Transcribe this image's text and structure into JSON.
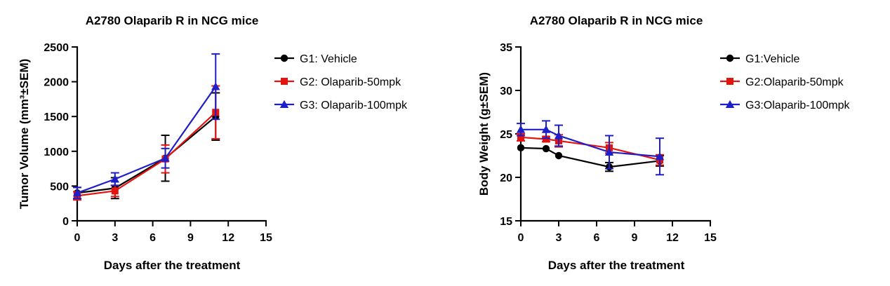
{
  "chart_data": [
    {
      "type": "line",
      "title": "A2780 Olaparib R  in NCG mice",
      "xlabel": "Days after the treatment",
      "ylabel": "Tumor Volume (mm³±SEM)",
      "xlim": [
        0,
        15
      ],
      "ylim": [
        0,
        2500
      ],
      "x_ticks": [
        "0",
        "3",
        "6",
        "9",
        "12",
        "15"
      ],
      "y_ticks": [
        "0",
        "500",
        "1000",
        "1500",
        "2000",
        "2500"
      ],
      "grid": false,
      "legend_position": "right",
      "series": [
        {
          "name": "G1: Vehicle",
          "color": "#000000",
          "marker": "circle",
          "x": [
            0,
            3,
            7,
            11
          ],
          "y": [
            400,
            470,
            900,
            1500
          ],
          "err": [
            80,
            150,
            330,
            340
          ]
        },
        {
          "name": "G2: Olaparib-50mpk",
          "color": "#e3130f",
          "marker": "square",
          "x": [
            0,
            3,
            7,
            11
          ],
          "y": [
            360,
            430,
            890,
            1560
          ],
          "err": [
            60,
            80,
            200,
            380
          ]
        },
        {
          "name": "G3: Olaparib-100mpk",
          "color": "#1f1fc8",
          "marker": "triangle",
          "x": [
            0,
            3,
            7,
            11
          ],
          "y": [
            400,
            600,
            900,
            1930
          ],
          "err": [
            80,
            90,
            140,
            470
          ]
        }
      ]
    },
    {
      "type": "line",
      "title": "A2780 Olaparib R in NCG mice",
      "xlabel": "Days after the treatment",
      "ylabel": "Body Weight (g±SEM)",
      "xlim": [
        0,
        15
      ],
      "ylim": [
        15,
        35
      ],
      "x_ticks": [
        "0",
        "3",
        "6",
        "9",
        "12",
        "15"
      ],
      "y_ticks": [
        "15",
        "20",
        "25",
        "30",
        "35"
      ],
      "grid": false,
      "legend_position": "right",
      "series": [
        {
          "name": "G1:Vehicle",
          "color": "#000000",
          "marker": "circle",
          "x": [
            0,
            2,
            3,
            7,
            11
          ],
          "y": [
            23.4,
            23.3,
            22.5,
            21.2,
            21.9
          ],
          "err": [
            0,
            0,
            0,
            0.5,
            0.6
          ]
        },
        {
          "name": "G2:Olaparib-50mpk",
          "color": "#e3130f",
          "marker": "square",
          "x": [
            0,
            2,
            3,
            7,
            11
          ],
          "y": [
            24.6,
            24.4,
            24.2,
            23.4,
            22.0
          ],
          "err": [
            0.4,
            0.3,
            0.7,
            0.6,
            0.6
          ]
        },
        {
          "name": "G3:Olaparib-100mpk",
          "color": "#1f1fc8",
          "marker": "triangle",
          "x": [
            0,
            2,
            3,
            7,
            11
          ],
          "y": [
            25.5,
            25.5,
            24.8,
            22.9,
            22.4
          ],
          "err": [
            0.7,
            1.0,
            1.2,
            1.9,
            2.1
          ]
        }
      ]
    }
  ]
}
